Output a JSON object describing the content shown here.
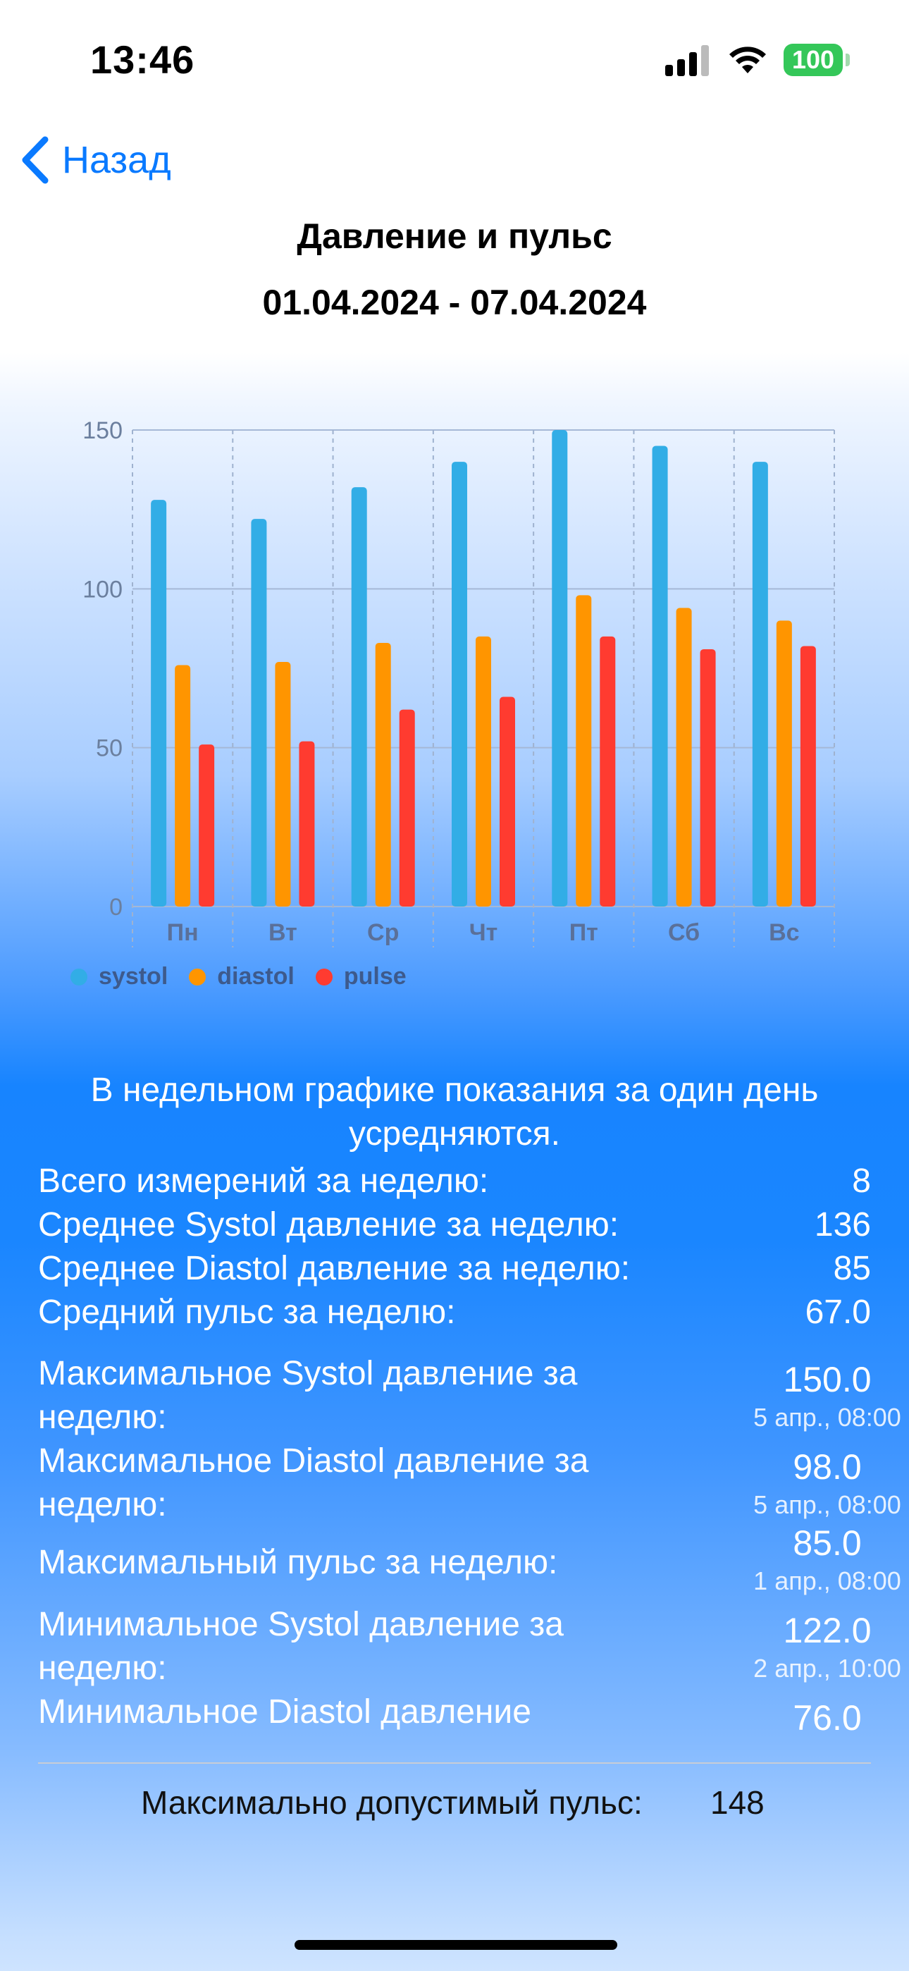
{
  "status_bar": {
    "time": "13:46",
    "battery": "100"
  },
  "nav": {
    "back_label": "Назад"
  },
  "header": {
    "title": "Давление и пульс",
    "date_range": "01.04.2024 - 07.04.2024"
  },
  "chart_data": {
    "type": "bar",
    "categories": [
      "Пн",
      "Вт",
      "Ср",
      "Чт",
      "Пт",
      "Сб",
      "Вс"
    ],
    "series": [
      {
        "name": "systol",
        "color": "#32ade6",
        "values": [
          128,
          122,
          132,
          140,
          150,
          145,
          140
        ]
      },
      {
        "name": "diastol",
        "color": "#ff9500",
        "values": [
          76,
          77,
          83,
          85,
          98,
          94,
          90
        ]
      },
      {
        "name": "pulse",
        "color": "#ff3b30",
        "values": [
          51,
          52,
          62,
          66,
          85,
          81,
          82
        ]
      }
    ],
    "yticks": [
      "0",
      "50",
      "100",
      "150"
    ],
    "ylim": [
      0,
      150
    ],
    "grid": true,
    "legend": "bottom-left"
  },
  "summary": {
    "note": "В недельном графике  показания за один день усредняются.",
    "rows": [
      {
        "label": "Всего измерений за неделю:",
        "value": "8"
      },
      {
        "label": "Среднее Systol давление за неделю:",
        "value": "136"
      },
      {
        "label": "Среднее Diastol давление за неделю:",
        "value": "85"
      },
      {
        "label": "Средний пульс за неделю:",
        "value": "67.0"
      }
    ],
    "extremes": [
      {
        "label": "Максимальное Systol давление за неделю:",
        "value": "150.0",
        "date": "5 апр., 08:00"
      },
      {
        "label": "Максимальное Diastol давление за неделю:",
        "value": "98.0",
        "date": "5 апр., 08:00"
      },
      {
        "label": "Максимальный пульс за неделю:",
        "value": "85.0",
        "date": "1 апр., 08:00"
      },
      {
        "label": "Минимальное Systol давление за неделю:",
        "value": "122.0",
        "date": "2 апр., 10:00"
      },
      {
        "label": "Минимальное Diastol давление",
        "value": "76.0",
        "date": ""
      }
    ]
  },
  "footer": {
    "max_pulse_label": "Максимально допустимый пульс:",
    "max_pulse_value": "148"
  }
}
